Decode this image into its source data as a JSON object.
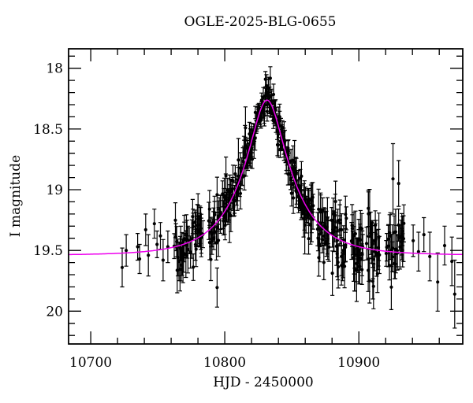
{
  "title": "OGLE-2025-BLG-0655",
  "background_color": "#ffffff",
  "chart_data": {
    "type": "scatter",
    "title": "OGLE-2025-BLG-0655",
    "xlabel": "HJD - 2450000",
    "ylabel": "I magnitude",
    "xlim": [
      10683.5,
      10977.5
    ],
    "ylim_mag": [
      17.84,
      20.27
    ],
    "y_axis_inverted": true,
    "grid": false,
    "legend": false,
    "x_ticks_major": [
      10700,
      10800,
      10900
    ],
    "x_tick_minor_step": 20,
    "y_ticks_major": [
      18,
      18.5,
      19,
      19.5,
      20
    ],
    "y_tick_minor_step": 0.1,
    "frame_color": "#000000",
    "model_curve": {
      "name": "microlensing-model-fit",
      "type": "paczynski",
      "color": "#ee00ee",
      "t0": 10831.5,
      "tE": 36,
      "u0": 0.32,
      "I_baseline": 19.54,
      "I_peak": 18.26
    },
    "points_style": {
      "color": "#000000",
      "marker": "circle",
      "radius": 2.1,
      "error_bars": true,
      "cap_half_width": 2.6
    },
    "anchor_points": [
      [
        10723.5,
        19.64,
        0.16
      ],
      [
        10726.5,
        19.5,
        0.13
      ],
      [
        10735.0,
        19.47,
        0.11
      ],
      [
        10736.5,
        19.57,
        0.12
      ],
      [
        10741.0,
        19.33,
        0.13
      ],
      [
        10743.0,
        19.54,
        0.17
      ],
      [
        10747.5,
        19.28,
        0.12
      ],
      [
        10749.5,
        19.45,
        0.11
      ],
      [
        10752.0,
        19.38,
        0.11
      ],
      [
        10754.0,
        19.58,
        0.17
      ],
      [
        10757.5,
        19.47,
        0.13
      ],
      [
        10940.5,
        19.42,
        0.13
      ],
      [
        10944.5,
        19.51,
        0.16
      ],
      [
        10948.5,
        19.37,
        0.14
      ],
      [
        10952.9,
        19.55,
        0.2
      ],
      [
        10958.8,
        19.76,
        0.24
      ],
      [
        10964.0,
        19.46,
        0.16
      ],
      [
        10969.4,
        19.59,
        0.2
      ],
      [
        10971.5,
        19.86,
        0.28
      ]
    ],
    "scatter_sampling": {
      "seed": 7,
      "clusters": [
        [
          10762.5,
          10773.5,
          22
        ],
        [
          10774.5,
          10783.5,
          20
        ],
        [
          10788.0,
          10797.0,
          24
        ],
        [
          10798.0,
          10813.0,
          40
        ],
        [
          10813.5,
          10830.0,
          55
        ],
        [
          10830.0,
          10846.0,
          58
        ],
        [
          10846.5,
          10866.5,
          52
        ],
        [
          10869.0,
          10878.0,
          24
        ],
        [
          10879.5,
          10891.0,
          30
        ],
        [
          10894.5,
          10903.5,
          26
        ],
        [
          10906.0,
          10915.5,
          26
        ],
        [
          10920.5,
          10934.0,
          30
        ]
      ],
      "err_model": {
        "base": 0.03,
        "scale": 0.125
      },
      "scatter_factor": 0.95,
      "outlier_fraction": 0.06
    }
  }
}
